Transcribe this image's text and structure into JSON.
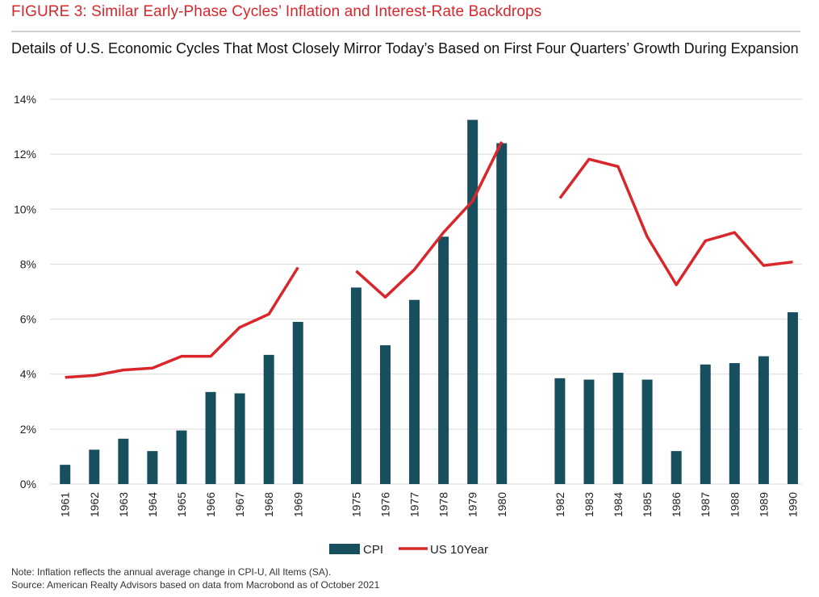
{
  "header": {
    "figure_title": "FIGURE 3: Similar Early-Phase Cycles’ Inflation and Interest-Rate Backdrops",
    "subtitle": "Details of U.S. Economic Cycles That Most Closely Mirror Today’s Based on First Four Quarters’ Growth During Expansion"
  },
  "footer": {
    "note": "Note: Inflation reflects the annual average change in CPI-U, All Items (SA).",
    "source": "Source: American Realty Advisors based on data from Macrobond as of October 2021"
  },
  "colors": {
    "cpi": "#184f5e",
    "us10": "#d9262b",
    "grid": "#d9d9d9"
  },
  "chart_data": {
    "type": "bar",
    "title": "",
    "xlabel": "",
    "ylabel": "",
    "ylim": [
      0,
      14
    ],
    "yticks": [
      "0%",
      "2%",
      "4%",
      "6%",
      "8%",
      "10%",
      "12%",
      "14%"
    ],
    "grid": true,
    "legend_position": "bottom",
    "groups": [
      {
        "categories": [
          "1961",
          "1962",
          "1963",
          "1964",
          "1965",
          "1966",
          "1967",
          "1968",
          "1969"
        ]
      },
      {
        "categories": [
          "1975",
          "1976",
          "1977",
          "1978",
          "1979",
          "1980"
        ]
      },
      {
        "categories": [
          "1982",
          "1983",
          "1984",
          "1985",
          "1986",
          "1987",
          "1988",
          "1989",
          "1990"
        ]
      }
    ],
    "categories": [
      "1961",
      "1962",
      "1963",
      "1964",
      "1965",
      "1966",
      "1967",
      "1968",
      "1969",
      "1975",
      "1976",
      "1977",
      "1978",
      "1979",
      "1980",
      "1982",
      "1983",
      "1984",
      "1985",
      "1986",
      "1987",
      "1988",
      "1989",
      "1990"
    ],
    "series": [
      {
        "name": "CPI",
        "type": "bar",
        "values": [
          0.7,
          1.25,
          1.65,
          1.2,
          1.95,
          3.35,
          3.3,
          4.7,
          5.9,
          7.15,
          5.05,
          6.7,
          9.0,
          13.25,
          12.4,
          3.85,
          3.8,
          4.05,
          3.8,
          1.2,
          4.35,
          4.4,
          4.65,
          6.25
        ]
      },
      {
        "name": "US 10Year",
        "type": "line",
        "values": [
          3.88,
          3.95,
          4.15,
          4.22,
          4.65,
          4.65,
          5.7,
          6.18,
          7.88,
          7.75,
          6.8,
          7.8,
          9.15,
          10.3,
          12.45,
          10.4,
          11.82,
          11.55,
          9.0,
          7.25,
          8.85,
          9.15,
          7.95,
          8.08
        ]
      }
    ]
  }
}
